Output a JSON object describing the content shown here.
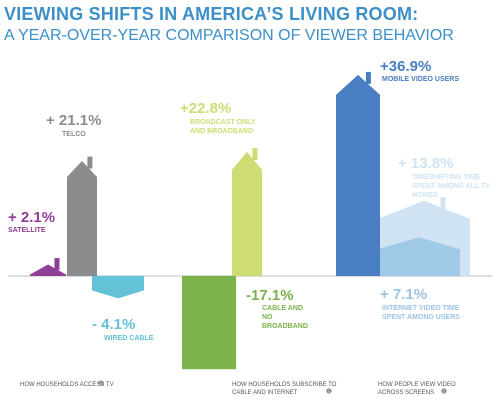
{
  "chart_data": {
    "type": "bar",
    "title": "VIEWING SHIFTS IN AMERICA’S LIVING ROOM:",
    "subtitle": "A YEAR-OVER-YEAR COMPARISON OF VIEWER BEHAVIOR",
    "unit": "%",
    "groups": [
      {
        "label": "HOW HOUSEHOLDS ACCESS TV",
        "bars": [
          {
            "value_label": "+ 2.1%",
            "category": "SATELLITE",
            "value": 2.1,
            "color": "#8f3f96"
          },
          {
            "value_label": "+ 21.1%",
            "category": "TELCO",
            "value": 21.1,
            "color": "#8c8c8e"
          },
          {
            "value_label": "- 4.1%",
            "category": "WIRED CABLE",
            "value": -4.1,
            "color": "#63c1d8"
          }
        ]
      },
      {
        "label": "HOW HOUSEHOLDS SUBSCRIBE TO CABLE AND INTERNET",
        "bars": [
          {
            "value_label": "+22.8%",
            "category": "BROADCAST ONLY AND BROADBAND",
            "value": 22.8,
            "color": "#cfdb73"
          },
          {
            "value_label": "-17.1%",
            "category": "CABLE AND NO BROADBAND",
            "value": -17.1,
            "color": "#7cb24a"
          }
        ]
      },
      {
        "label": "HOW PEOPLE VIEW VIDEO ACROSS SCREENS",
        "bars": [
          {
            "value_label": "+36.9%",
            "category": "MOBILE VIDEO USERS",
            "value": 36.9,
            "color": "#4a7ec2"
          },
          {
            "value_label": "+ 13.8%",
            "category": "TIMESHIFTING TIME SPENT AMONG ALL TV HOMES",
            "value": 13.8,
            "color": "#cfe3f3"
          },
          {
            "value_label": "+ 7.1%",
            "category": "INTERNET VIDEO TIME SPENT AMONG USERS",
            "value": 7.1,
            "color": "#9ac4e6"
          }
        ]
      }
    ],
    "colors": {
      "title": "#3d8fc8",
      "baseline": "#bfbfbf",
      "info_icon": "#888888"
    }
  }
}
